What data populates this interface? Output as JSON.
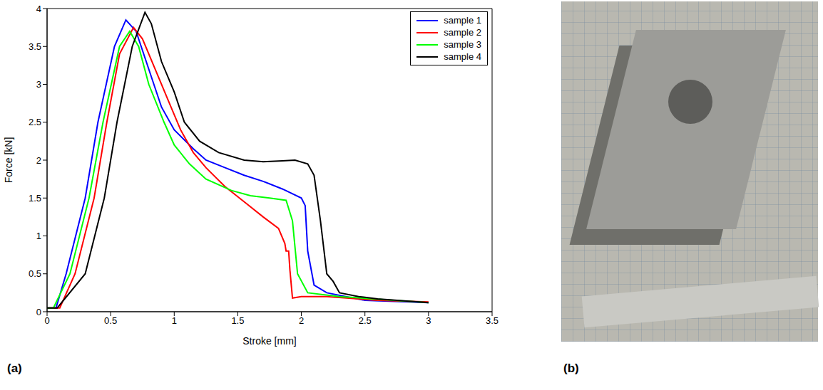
{
  "panel_labels": [
    "(a)",
    "(b)"
  ],
  "chart_data": {
    "type": "line",
    "xlabel": "Stroke [mm]",
    "ylabel": "Force [kN]",
    "xlim": [
      0,
      3.5
    ],
    "ylim": [
      0,
      4
    ],
    "xticks": [
      0,
      0.5,
      1,
      1.5,
      2,
      2.5,
      3,
      3.5
    ],
    "yticks": [
      0,
      0.5,
      1,
      1.5,
      2,
      2.5,
      3,
      3.5,
      4
    ],
    "legend": "upper right",
    "series": [
      {
        "name": "sample 1",
        "color": "#0000ff",
        "x": [
          0,
          0.07,
          0.15,
          0.3,
          0.4,
          0.53,
          0.62,
          0.7,
          0.8,
          0.9,
          1.0,
          1.15,
          1.25,
          1.4,
          1.55,
          1.7,
          1.85,
          2.0,
          2.03,
          2.05,
          2.1,
          2.2,
          2.5,
          3.0
        ],
        "values": [
          0.05,
          0.05,
          0.5,
          1.5,
          2.5,
          3.5,
          3.85,
          3.7,
          3.2,
          2.7,
          2.4,
          2.15,
          2.0,
          1.9,
          1.8,
          1.72,
          1.62,
          1.5,
          1.4,
          0.8,
          0.35,
          0.25,
          0.15,
          0.12
        ]
      },
      {
        "name": "sample 2",
        "color": "#ff0000",
        "x": [
          0,
          0.1,
          0.22,
          0.37,
          0.47,
          0.57,
          0.68,
          0.75,
          0.85,
          0.95,
          1.05,
          1.15,
          1.25,
          1.4,
          1.55,
          1.7,
          1.82,
          1.87,
          1.88,
          1.9,
          1.91,
          1.93,
          2.0,
          2.2,
          2.6,
          3.0
        ],
        "values": [
          0.05,
          0.05,
          0.5,
          1.5,
          2.5,
          3.4,
          3.75,
          3.6,
          3.2,
          2.8,
          2.4,
          2.1,
          1.9,
          1.65,
          1.45,
          1.25,
          1.1,
          0.9,
          0.8,
          0.8,
          0.55,
          0.18,
          0.2,
          0.2,
          0.15,
          0.13
        ]
      },
      {
        "name": "sample 3",
        "color": "#00ff00",
        "x": [
          0,
          0.05,
          0.18,
          0.33,
          0.44,
          0.57,
          0.65,
          0.72,
          0.8,
          0.92,
          1.0,
          1.12,
          1.25,
          1.45,
          1.6,
          1.75,
          1.88,
          1.93,
          1.97,
          2.05,
          2.3,
          3.0
        ],
        "values": [
          0.05,
          0.05,
          0.5,
          1.5,
          2.5,
          3.5,
          3.7,
          3.5,
          3.0,
          2.5,
          2.2,
          1.95,
          1.75,
          1.6,
          1.53,
          1.5,
          1.47,
          1.2,
          0.5,
          0.25,
          0.2,
          0.12
        ]
      },
      {
        "name": "sample 4",
        "color": "#000000",
        "x": [
          0,
          0.08,
          0.3,
          0.45,
          0.55,
          0.67,
          0.77,
          0.82,
          0.9,
          1.0,
          1.08,
          1.2,
          1.35,
          1.55,
          1.7,
          1.85,
          1.95,
          2.05,
          2.1,
          2.15,
          2.2,
          2.25,
          2.3,
          2.45,
          2.6,
          3.0
        ],
        "values": [
          0.05,
          0.05,
          0.5,
          1.5,
          2.5,
          3.5,
          3.95,
          3.8,
          3.3,
          2.9,
          2.5,
          2.25,
          2.1,
          2.0,
          1.98,
          1.99,
          2.0,
          1.95,
          1.8,
          1.2,
          0.5,
          0.4,
          0.25,
          0.2,
          0.17,
          0.12
        ]
      }
    ]
  }
}
